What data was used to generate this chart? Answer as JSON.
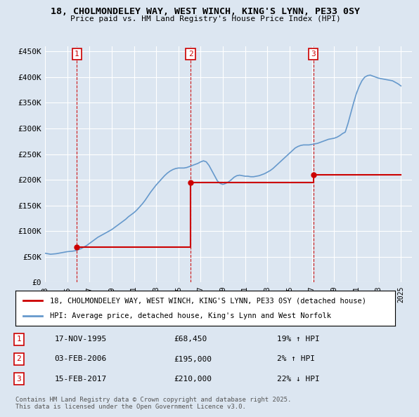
{
  "title": "18, CHOLMONDELEY WAY, WEST WINCH, KING'S LYNN, PE33 0SY",
  "subtitle": "Price paid vs. HM Land Registry's House Price Index (HPI)",
  "ylim": [
    0,
    460000
  ],
  "yticks": [
    0,
    50000,
    100000,
    150000,
    200000,
    250000,
    300000,
    350000,
    400000,
    450000
  ],
  "ytick_labels": [
    "£0",
    "£50K",
    "£100K",
    "£150K",
    "£200K",
    "£250K",
    "£300K",
    "£350K",
    "£400K",
    "£450K"
  ],
  "xlim_start": 1993,
  "xlim_end": 2026,
  "sale_dates": [
    "1995-11-17",
    "2006-02-03",
    "2017-02-15"
  ],
  "sale_prices": [
    68450,
    195000,
    210000
  ],
  "sale_labels": [
    "1",
    "2",
    "3"
  ],
  "sale_color": "#cc0000",
  "hpi_color": "#6699cc",
  "background_color": "#dce6f1",
  "plot_bg_color": "#dce6f1",
  "grid_color": "#ffffff",
  "legend_label_property": "18, CHOLMONDELEY WAY, WEST WINCH, KING'S LYNN, PE33 0SY (detached house)",
  "legend_label_hpi": "HPI: Average price, detached house, King's Lynn and West Norfolk",
  "transactions": [
    {
      "num": "1",
      "date": "17-NOV-1995",
      "price": "£68,450",
      "pct": "19% ↑ HPI"
    },
    {
      "num": "2",
      "date": "03-FEB-2006",
      "price": "£195,000",
      "pct": "2% ↑ HPI"
    },
    {
      "num": "3",
      "date": "15-FEB-2017",
      "price": "£210,000",
      "pct": "22% ↓ HPI"
    }
  ],
  "footer": "Contains HM Land Registry data © Crown copyright and database right 2025.\nThis data is licensed under the Open Government Licence v3.0.",
  "vline_color": "#cc0000",
  "hpi_line_data_x": [
    1993.0,
    1993.25,
    1993.5,
    1993.75,
    1994.0,
    1994.25,
    1994.5,
    1994.75,
    1995.0,
    1995.25,
    1995.5,
    1995.75,
    1996.0,
    1996.25,
    1996.5,
    1996.75,
    1997.0,
    1997.25,
    1997.5,
    1997.75,
    1998.0,
    1998.25,
    1998.5,
    1998.75,
    1999.0,
    1999.25,
    1999.5,
    1999.75,
    2000.0,
    2000.25,
    2000.5,
    2000.75,
    2001.0,
    2001.25,
    2001.5,
    2001.75,
    2002.0,
    2002.25,
    2002.5,
    2002.75,
    2003.0,
    2003.25,
    2003.5,
    2003.75,
    2004.0,
    2004.25,
    2004.5,
    2004.75,
    2005.0,
    2005.25,
    2005.5,
    2005.75,
    2006.0,
    2006.25,
    2006.5,
    2006.75,
    2007.0,
    2007.25,
    2007.5,
    2007.75,
    2008.0,
    2008.25,
    2008.5,
    2008.75,
    2009.0,
    2009.25,
    2009.5,
    2009.75,
    2010.0,
    2010.25,
    2010.5,
    2010.75,
    2011.0,
    2011.25,
    2011.5,
    2011.75,
    2012.0,
    2012.25,
    2012.5,
    2012.75,
    2013.0,
    2013.25,
    2013.5,
    2013.75,
    2014.0,
    2014.25,
    2014.5,
    2014.75,
    2015.0,
    2015.25,
    2015.5,
    2015.75,
    2016.0,
    2016.25,
    2016.5,
    2016.75,
    2017.0,
    2017.25,
    2017.5,
    2017.75,
    2018.0,
    2018.25,
    2018.5,
    2018.75,
    2019.0,
    2019.25,
    2019.5,
    2019.75,
    2020.0,
    2020.25,
    2020.5,
    2020.75,
    2021.0,
    2021.25,
    2021.5,
    2021.75,
    2022.0,
    2022.25,
    2022.5,
    2022.75,
    2023.0,
    2023.25,
    2023.5,
    2023.75,
    2024.0,
    2024.25,
    2024.5,
    2024.75,
    2025.0
  ],
  "hpi_line_data_y": [
    57000,
    56000,
    55000,
    55500,
    56000,
    57000,
    58000,
    59000,
    60000,
    60500,
    61000,
    62000,
    64000,
    66000,
    69000,
    72000,
    76000,
    80000,
    84000,
    88000,
    91000,
    94000,
    97000,
    100000,
    103000,
    107000,
    111000,
    115000,
    119000,
    123000,
    128000,
    132000,
    136000,
    141000,
    147000,
    153000,
    160000,
    168000,
    176000,
    183000,
    190000,
    196000,
    202000,
    208000,
    213000,
    217000,
    220000,
    222000,
    223000,
    223000,
    223000,
    224000,
    226000,
    228000,
    230000,
    232000,
    235000,
    237000,
    235000,
    228000,
    218000,
    208000,
    198000,
    193000,
    191000,
    193000,
    196000,
    200000,
    205000,
    208000,
    209000,
    208000,
    207000,
    207000,
    206000,
    206000,
    207000,
    208000,
    210000,
    212000,
    215000,
    218000,
    222000,
    227000,
    232000,
    237000,
    242000,
    247000,
    252000,
    257000,
    262000,
    265000,
    267000,
    268000,
    268000,
    268000,
    269000,
    270000,
    271000,
    273000,
    275000,
    277000,
    279000,
    280000,
    281000,
    283000,
    286000,
    290000,
    293000,
    310000,
    330000,
    350000,
    368000,
    382000,
    393000,
    400000,
    403000,
    404000,
    402000,
    400000,
    398000,
    397000,
    396000,
    395000,
    394000,
    393000,
    390000,
    387000,
    383000
  ],
  "property_line_data_x": [
    1995.88,
    2006.09,
    2006.09,
    2017.12,
    2017.12,
    2025.0
  ],
  "property_line_data_y": [
    68450,
    68450,
    195000,
    195000,
    210000,
    210000
  ]
}
